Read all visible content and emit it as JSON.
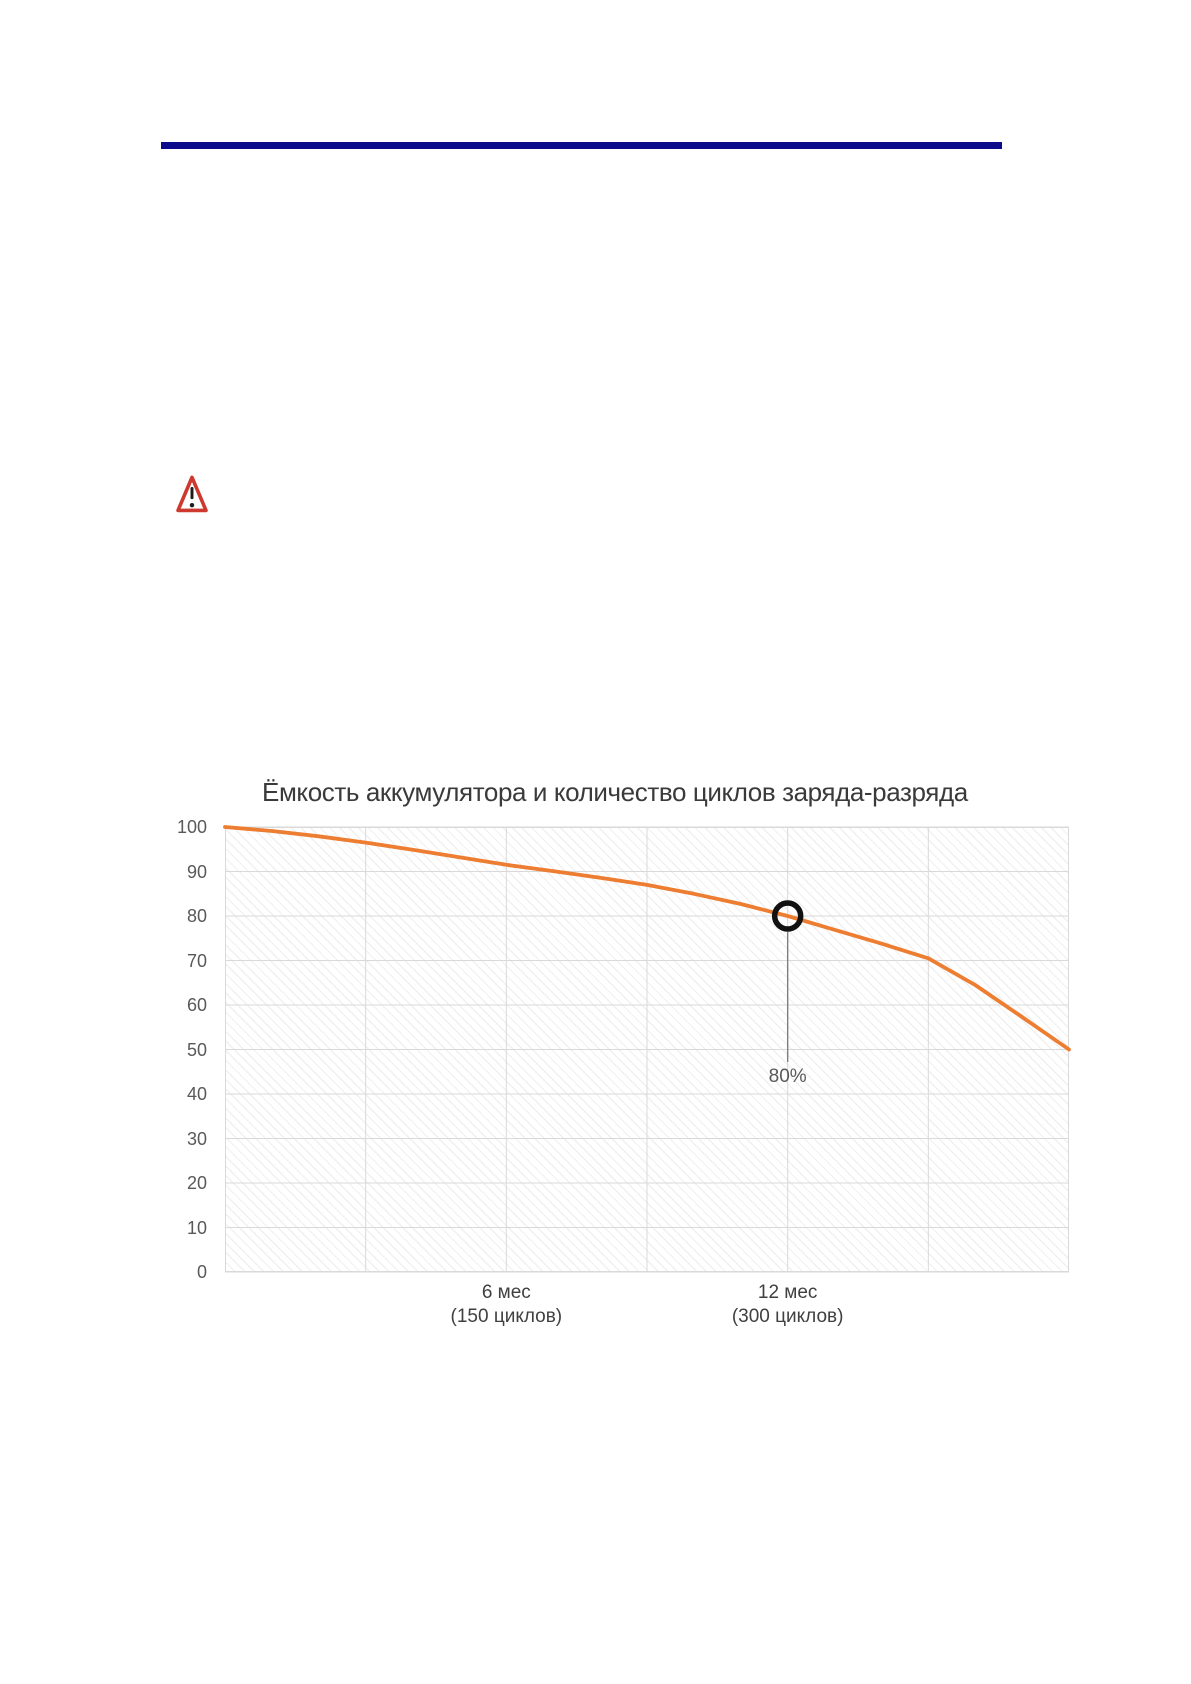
{
  "page": {
    "top_rule_color": "#0a0a8b",
    "background": "#ffffff"
  },
  "warning": {
    "border_color": "#cd392e",
    "glyph_color": "#1c1c1c",
    "fill_color": "#ffffff"
  },
  "chart_data": {
    "type": "line",
    "title": "Ёмкость аккумулятора и количество циклов заряда-разряда",
    "title_color": "#3a3a3a",
    "xlim_months": [
      0,
      18
    ],
    "ylim": [
      0,
      100
    ],
    "grid": true,
    "grid_color": "#d9d9d9",
    "plot_background": "diagonal-hatch",
    "y_ticks": [
      100,
      90,
      80,
      70,
      60,
      50,
      40,
      30,
      20,
      10,
      0
    ],
    "x_ticks": [
      {
        "month": 6,
        "line1": "6 мес",
        "line2": "(150 циклов)"
      },
      {
        "month": 12,
        "line1": "12 мес",
        "line2": "(300 циклов)"
      }
    ],
    "series": [
      {
        "color": "#ED7D31",
        "x_months": [
          0,
          1,
          2,
          3,
          4,
          5,
          6,
          7,
          8,
          9,
          10,
          11,
          12,
          13,
          14,
          15,
          16,
          17,
          18
        ],
        "y_percent": [
          100,
          99.1,
          97.9,
          96.5,
          94.9,
          93.2,
          91.5,
          90.1,
          88.6,
          87,
          85,
          82.7,
          80,
          76.9,
          73.8,
          70.5,
          64.5,
          57.3,
          50
        ]
      }
    ],
    "annotation": {
      "label": "80%",
      "x_month": 12,
      "y_percent": 80,
      "marker": "black-ring",
      "marker_color": "#111111",
      "leader_color": "#7f7f7f",
      "label_color": "#595959"
    }
  }
}
